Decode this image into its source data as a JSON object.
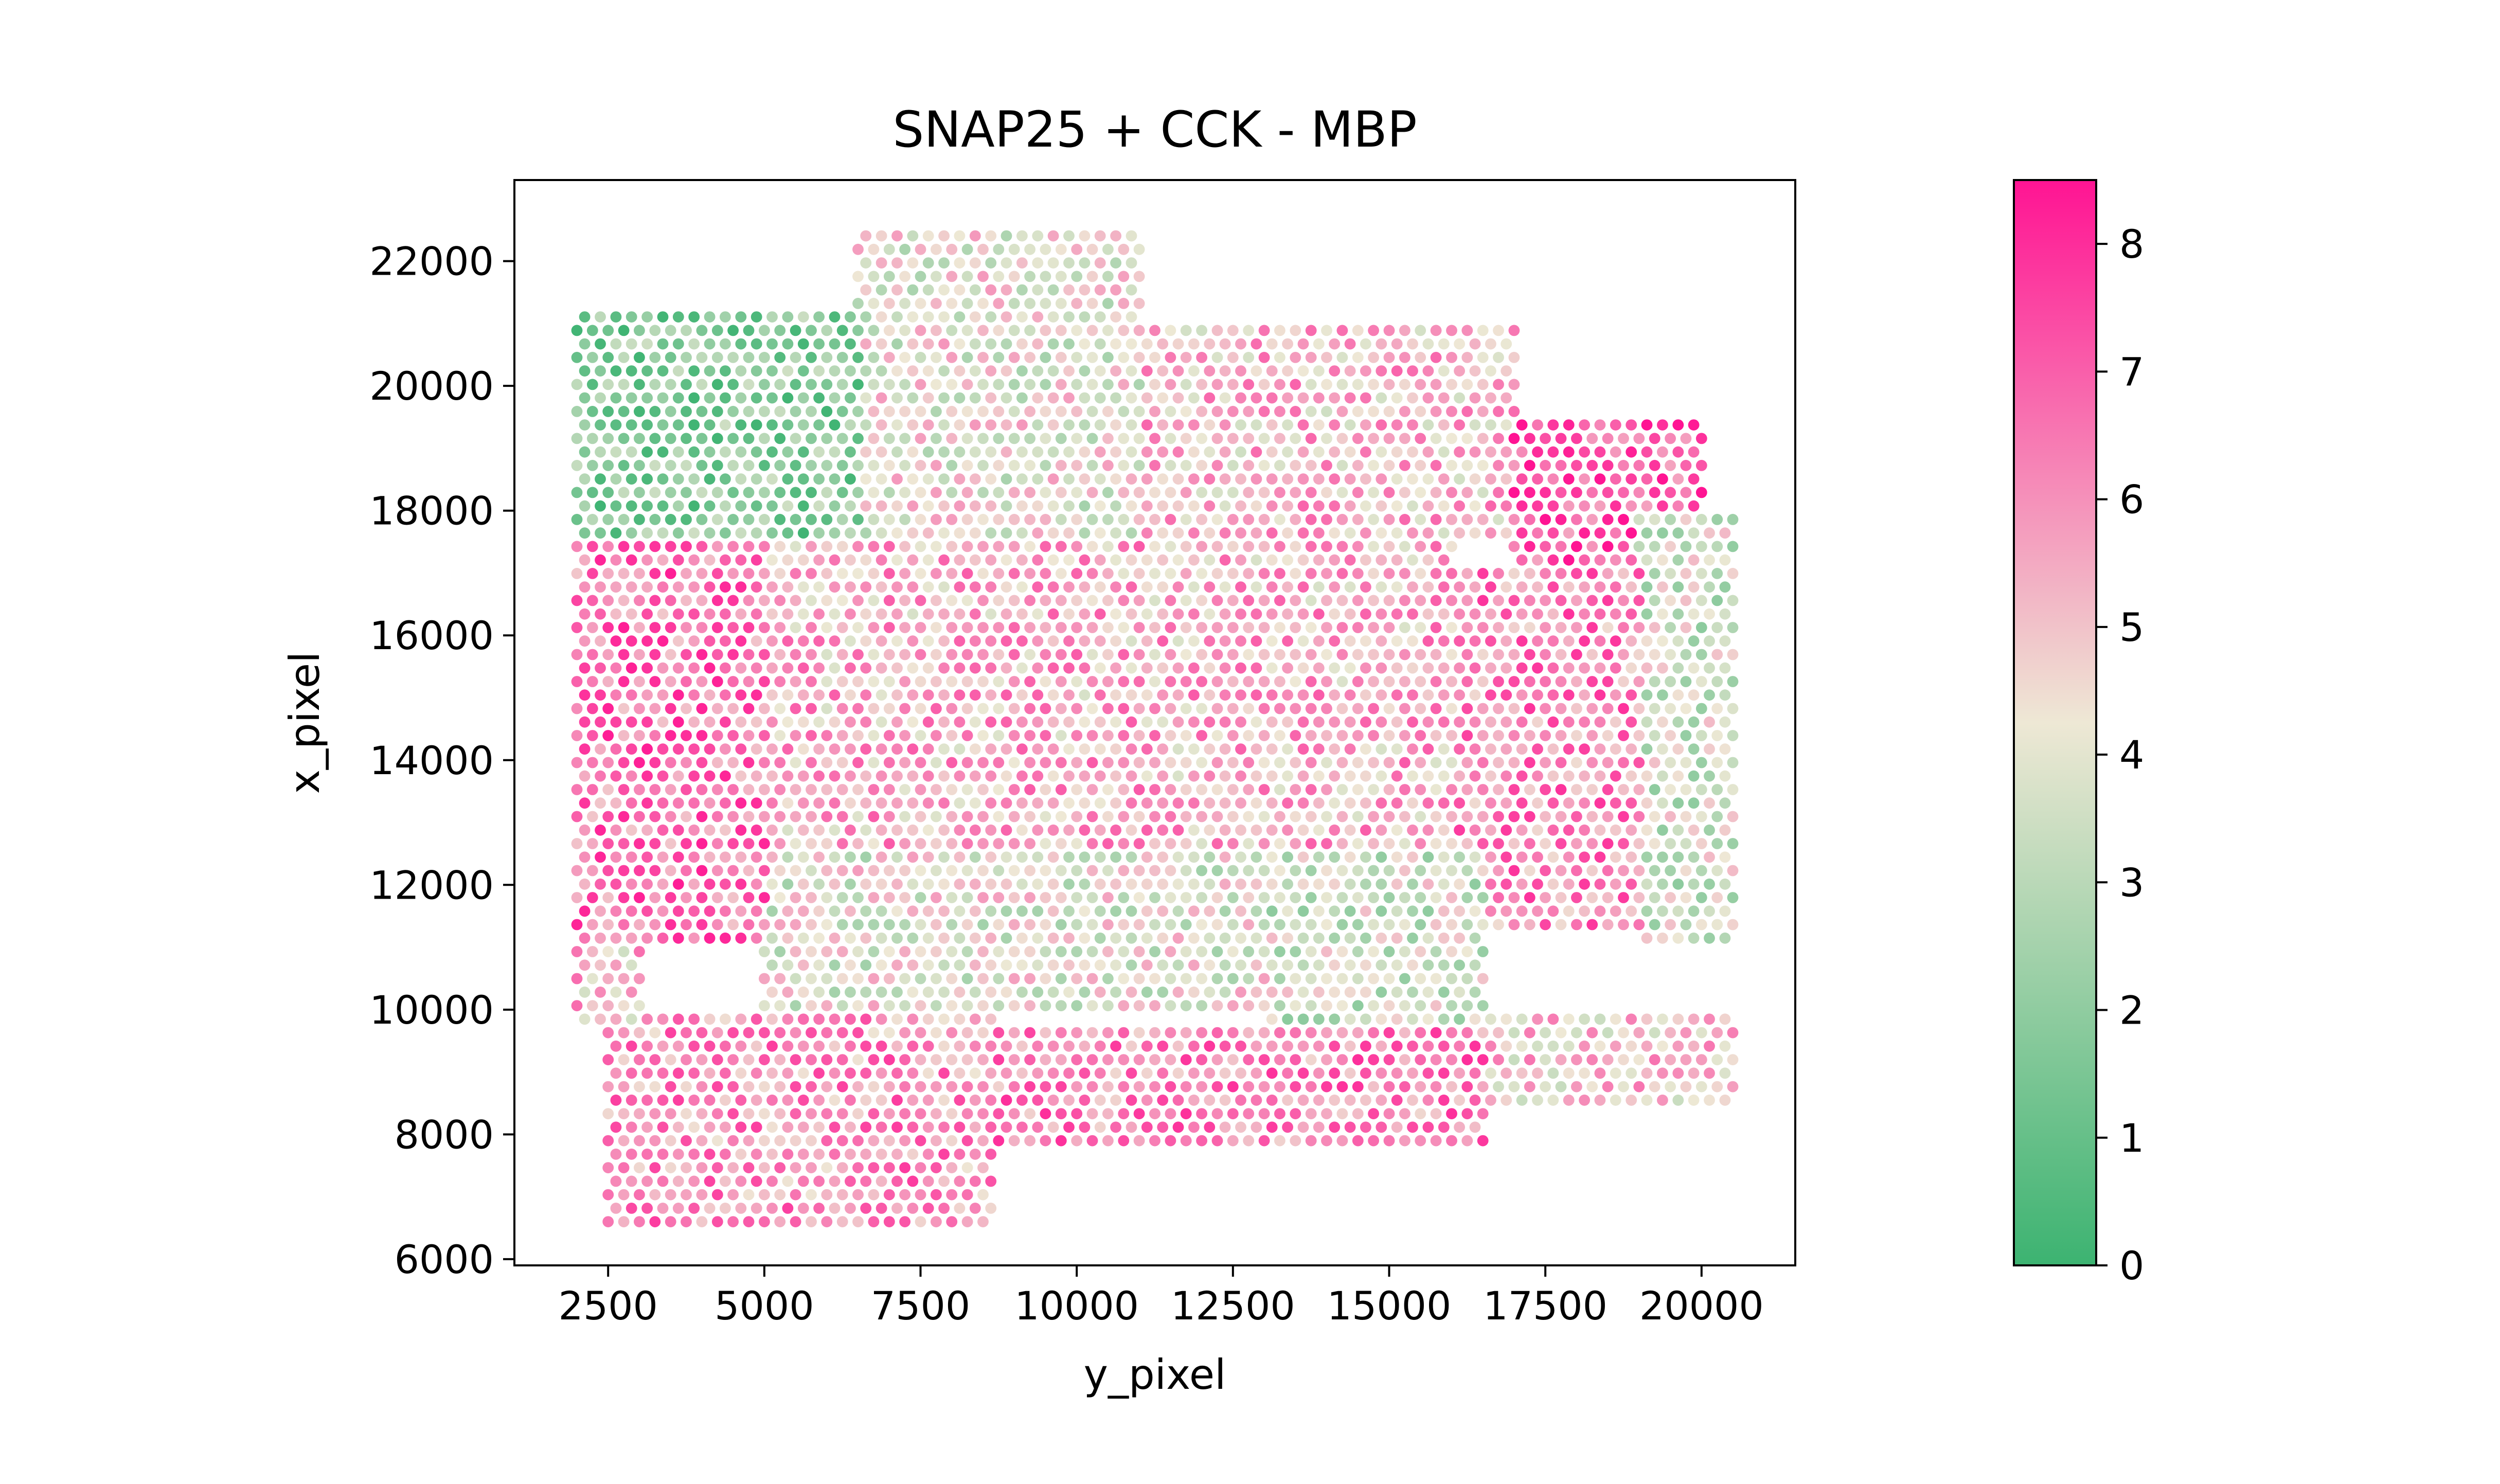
{
  "chart_data": {
    "type": "scatter",
    "title": "SNAP25 + CCK - MBP",
    "xlabel": "y_pixel",
    "ylabel": "x_pixel",
    "xlim": [
      1000,
      21500
    ],
    "ylim": [
      23300,
      5900
    ],
    "y_inverted": true,
    "xticks": [
      2500,
      5000,
      7500,
      10000,
      12500,
      15000,
      17500,
      20000
    ],
    "yticks": [
      6000,
      8000,
      10000,
      12000,
      14000,
      16000,
      18000,
      20000,
      22000
    ],
    "grid": false,
    "colorbar": {
      "min": 0,
      "max": 8.5,
      "ticks": [
        0,
        1,
        2,
        3,
        4,
        5,
        6,
        7,
        8
      ],
      "colors": [
        "#3cb371",
        "#eee8d5",
        "#ff1493"
      ]
    },
    "point_color_scale": "low values green, mid values beige, high values pink",
    "spot_spacing": 250,
    "regions": [
      {
        "x_min": 2000,
        "x_max": 3000,
        "y_min": 9700,
        "y_max": 11000,
        "value": 5.2
      },
      {
        "x_min": 2500,
        "x_max": 8700,
        "y_min": 6600,
        "y_max": 9900,
        "value": 6.0
      },
      {
        "x_min": 8700,
        "x_max": 16500,
        "y_min": 7800,
        "y_max": 9800,
        "value": 6.3
      },
      {
        "x_min": 16500,
        "x_max": 20600,
        "y_min": 8500,
        "y_max": 9900,
        "value": 5.0
      },
      {
        "x_min": 2000,
        "x_max": 5000,
        "y_min": 11000,
        "y_max": 17500,
        "value": 6.6
      },
      {
        "x_min": 5000,
        "x_max": 13000,
        "y_min": 10000,
        "y_max": 12500,
        "value": 4.1
      },
      {
        "x_min": 13000,
        "x_max": 16500,
        "y_min": 9800,
        "y_max": 12500,
        "value": 3.6
      },
      {
        "x_min": 5000,
        "x_max": 16000,
        "y_min": 12500,
        "y_max": 17500,
        "value": 5.4
      },
      {
        "x_min": 16000,
        "x_max": 19000,
        "y_min": 11200,
        "y_max": 17000,
        "value": 6.2
      },
      {
        "x_min": 19000,
        "x_max": 20600,
        "y_min": 11000,
        "y_max": 18000,
        "value": 3.6
      },
      {
        "x_min": 17000,
        "x_max": 20000,
        "y_min": 17000,
        "y_max": 19500,
        "value": 7.2
      },
      {
        "x_min": 2000,
        "x_max": 6500,
        "y_min": 17500,
        "y_max": 21300,
        "value": 1.8
      },
      {
        "x_min": 6500,
        "x_max": 11000,
        "y_min": 17500,
        "y_max": 22500,
        "value": 4.2
      },
      {
        "x_min": 11000,
        "x_max": 17000,
        "y_min": 17500,
        "y_max": 21000,
        "value": 5.2
      }
    ]
  }
}
